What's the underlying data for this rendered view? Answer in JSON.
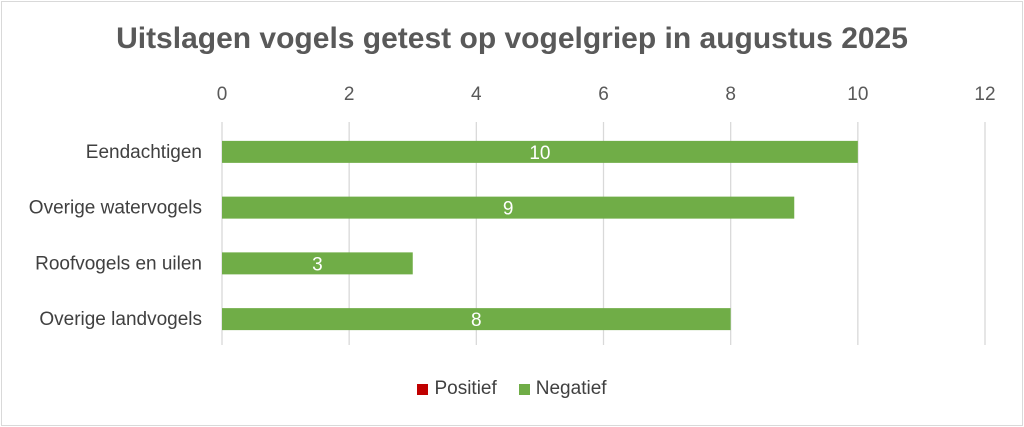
{
  "chart_data": {
    "type": "bar",
    "orientation": "horizontal",
    "title": "Uitslagen vogels getest op vogelgriep in augustus 2025",
    "categories": [
      "Eendachtigen",
      "Overige watervogels",
      "Roofvogels en uilen",
      "Overige landvogels"
    ],
    "series": [
      {
        "name": "Positief",
        "color": "#c00000",
        "values": [
          0,
          0,
          0,
          0
        ]
      },
      {
        "name": "Negatief",
        "color": "#70ad47",
        "values": [
          10,
          9,
          3,
          8
        ]
      }
    ],
    "xlim": [
      0,
      12
    ],
    "xticks": [
      "0",
      "2",
      "4",
      "6",
      "8",
      "10",
      "12"
    ],
    "xaxis_position": "top",
    "grid": true,
    "legend_position": "bottom",
    "data_labels": [
      "10",
      "9",
      "3",
      "8"
    ]
  }
}
